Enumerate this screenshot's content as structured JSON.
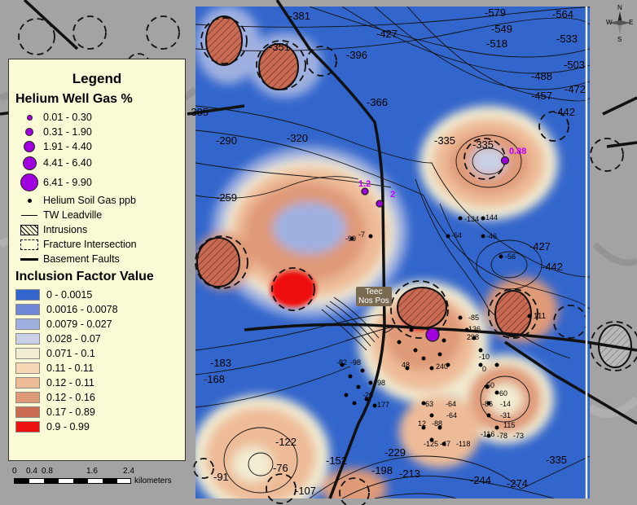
{
  "legend": {
    "title": "Legend",
    "helium_well_gas": {
      "title": "Helium Well Gas %",
      "classes": [
        "0.01 - 0.30",
        "0.31 - 1.90",
        "1.91 - 4.40",
        "4.41 - 6.40",
        "6.41 - 9.90"
      ]
    },
    "helium_soil_gas": "Helium Soil Gas ppb",
    "tw_leadville": "TW Leadville",
    "intrusions": "Intrusions",
    "fracture_intersection": "Fracture Intersection",
    "basement_faults": "Basement Faults",
    "inclusion_factor": {
      "title": "Inclusion Factor Value",
      "classes": [
        {
          "label": "0 - 0.0015",
          "color": "#3366cc"
        },
        {
          "label": "0.0016 - 0.0078",
          "color": "#6f88d8"
        },
        {
          "label": "0.0079 - 0.027",
          "color": "#9fb0e0"
        },
        {
          "label": "0.028 - 0.07",
          "color": "#c9d0e6"
        },
        {
          "label": "0.071 - 0.1",
          "color": "#f2ecd2"
        },
        {
          "label": "0.11 - 0.11",
          "color": "#f6d9b4"
        },
        {
          "label": "0.12 - 0.11",
          "color": "#eebb98"
        },
        {
          "label": "0.12 - 0.16",
          "color": "#df9a78"
        },
        {
          "label": "0.17 - 0.89",
          "color": "#cc6a52"
        },
        {
          "label": "0.9 - 0.99",
          "color": "#ee1111"
        }
      ]
    }
  },
  "scale": {
    "ticks": [
      "0",
      "0.4",
      "0.8",
      "1.6",
      "2.4"
    ],
    "unit": "kilometers"
  },
  "compass": {
    "n": "N",
    "s": "S",
    "e": "E",
    "w": "W"
  },
  "place_label": {
    "line1": "Teec",
    "line2": "Nos Pos"
  },
  "well_labels": [
    "0.88",
    "1.2",
    "2"
  ],
  "contour_labels": [
    "-381",
    "-427",
    "-579",
    "-564",
    "-549",
    "-533",
    "-518",
    "-503",
    "-488",
    "-472",
    "-457",
    "-442",
    "-351",
    "-396",
    "-366",
    "-305",
    "-320",
    "-290",
    "-335",
    "-335",
    "-259",
    "-427",
    "-442",
    "-183",
    "-168",
    "-229",
    "-198",
    "-213",
    "-244",
    "-274",
    "-335",
    "-122",
    "-76",
    "-91",
    "-107",
    "-152"
  ],
  "soil_values": [
    "-7",
    "-99",
    "-134",
    "144",
    "-64",
    "-46",
    "-56",
    "-85",
    "136",
    "298",
    "-10",
    "0",
    "-50",
    "-60",
    "-86",
    "-14",
    "-31",
    "115",
    "-78",
    "-73",
    "-116",
    "-63",
    "-64",
    "-88",
    "12",
    "-64",
    "-98",
    "-26",
    "-177",
    "-82",
    "-98",
    "111",
    "240",
    "48",
    "-125",
    "-47",
    "-118"
  ]
}
